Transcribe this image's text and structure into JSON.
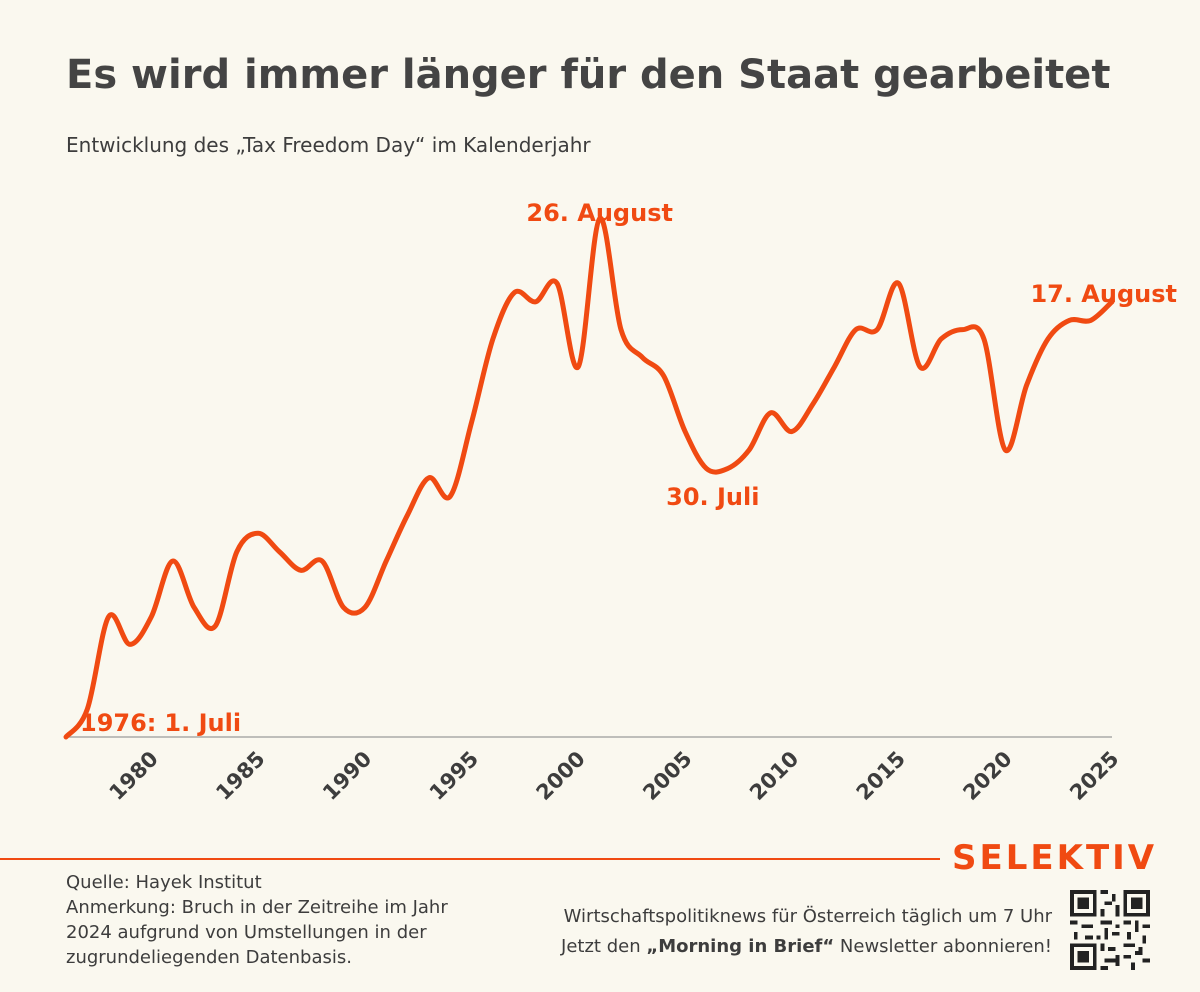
{
  "title": "Es wird immer länger für den Staat gearbeitet",
  "subtitle": "Entwicklung des „Tax Freedom Day“ im Kalenderjahr",
  "colors": {
    "accent": "#f04a12",
    "text": "#3d3d3d",
    "background": "#faf8ef"
  },
  "chart_data": {
    "type": "line",
    "x": [
      1976,
      1977,
      1978,
      1979,
      1980,
      1981,
      1982,
      1983,
      1984,
      1985,
      1986,
      1987,
      1988,
      1989,
      1990,
      1991,
      1992,
      1993,
      1994,
      1995,
      1996,
      1997,
      1998,
      1999,
      2000,
      2001,
      2002,
      2003,
      2004,
      2005,
      2006,
      2007,
      2008,
      2009,
      2010,
      2011,
      2012,
      2013,
      2014,
      2015,
      2016,
      2017,
      2018,
      2019,
      2020,
      2021,
      2022,
      2023,
      2024,
      2025
    ],
    "values": [
      "1976-07-01",
      "1976-07-04",
      "1976-07-14",
      "1976-07-11",
      "1976-07-14",
      "1976-07-20",
      "1976-07-15",
      "1976-07-13",
      "1976-07-21",
      "1976-07-23",
      "1976-07-21",
      "1976-07-19",
      "1976-07-20",
      "1976-07-15",
      "1976-07-15",
      "1976-07-20",
      "1976-07-25",
      "1976-07-29",
      "1976-07-27",
      "1976-08-04",
      "1976-08-13",
      "1976-08-18",
      "1976-08-17",
      "1976-08-19",
      "1976-08-10",
      "1976-08-26",
      "1976-08-14",
      "1976-08-11",
      "1976-08-09",
      "1976-08-03",
      "1976-07-30",
      "1976-07-30",
      "1976-08-01",
      "1976-08-05",
      "1976-08-03",
      "1976-08-06",
      "1976-08-10",
      "1976-08-14",
      "1976-08-14",
      "1976-08-19",
      "1976-08-10",
      "1976-08-13",
      "1976-08-14",
      "1976-08-13",
      "1976-08-01",
      "1976-08-08",
      "1976-08-13",
      "1976-08-15",
      "1976-08-15",
      "1976-08-17"
    ],
    "xticks": [
      "1980",
      "1985",
      "1990",
      "1995",
      "2000",
      "2005",
      "2010",
      "2015",
      "2020",
      "2025"
    ],
    "annotations": {
      "start_year": "1976:",
      "start_date": "1. Juli",
      "peak": "26. August",
      "low": "30. Juli",
      "end": "17. August"
    },
    "xlabel": "",
    "ylabel": ""
  },
  "footer": {
    "brand": "SELEKTIV",
    "source": "Quelle: Hayek Institut",
    "note": "Anmerkung: Bruch in der Zeitreihe im Jahr 2024 aufgrund von Umstellungen in der zugrundeliegenden Datenbasis.",
    "promo_line1": "Wirtschaftspolitiknews für Österreich täglich um 7 Uhr",
    "promo_line2_pre": "Jetzt den ",
    "promo_line2_bold": "„Morning in Brief“",
    "promo_line2_post": " Newsletter abonnieren!",
    "qr_icon": "qr-code-icon"
  }
}
